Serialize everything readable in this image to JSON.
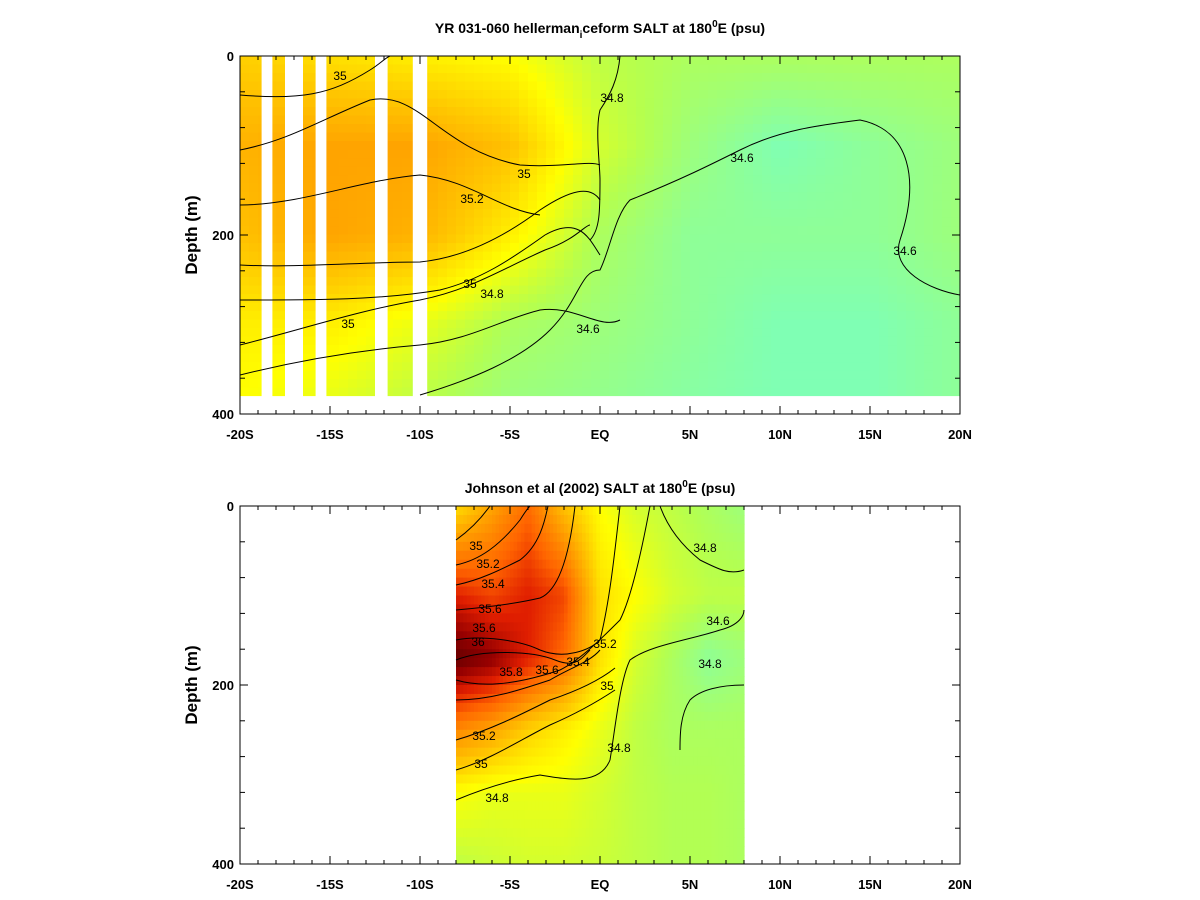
{
  "chart_data": [
    {
      "type": "heatmap",
      "title": "YR 031-060 hellerman_iceform SALT at 180°E (psu)",
      "title_parts": {
        "main": "YR 031-060 hellerman",
        "sub": "i",
        "mid": "ceform SALT at 180",
        "sup": "0",
        "end": "E (psu)"
      },
      "xlabel": "",
      "ylabel": "Depth (m)",
      "xlim": [
        -20,
        20
      ],
      "ylim": [
        400,
        0
      ],
      "x_tick_values": [
        -20,
        -15,
        -10,
        -5,
        0,
        5,
        10,
        15,
        20
      ],
      "x_tick_labels": [
        "-20S",
        "-15S",
        "-10S",
        "-5S",
        "EQ",
        "5N",
        "10N",
        "15N",
        "20N"
      ],
      "y_tick_values": [
        0,
        200,
        400
      ],
      "y_tick_labels": [
        "0",
        "200",
        "400"
      ],
      "data_extent": {
        "x": [
          -20,
          20
        ],
        "y": [
          0,
          380
        ]
      },
      "missing_columns": [
        [
          -18.8,
          -18.2
        ],
        [
          -17.5,
          -16.5
        ],
        [
          -15.8,
          -15.2
        ],
        [
          -12.5,
          -11.8
        ],
        [
          -10.4,
          -9.6
        ]
      ],
      "salinity_grid": {
        "x": [
          -20,
          -15,
          -10,
          -5,
          0,
          5,
          10,
          15,
          20
        ],
        "depth": [
          0,
          100,
          200,
          300,
          380
        ],
        "values": [
          [
            35.05,
            35.0,
            34.95,
            34.9,
            34.75,
            34.7,
            34.7,
            34.7,
            34.7
          ],
          [
            35.15,
            35.2,
            35.2,
            35.1,
            34.8,
            34.65,
            34.55,
            34.6,
            34.65
          ],
          [
            35.1,
            35.2,
            35.15,
            34.95,
            34.7,
            34.6,
            34.6,
            34.6,
            34.65
          ],
          [
            34.95,
            34.95,
            34.85,
            34.7,
            34.65,
            34.6,
            34.55,
            34.55,
            34.6
          ],
          [
            34.9,
            34.85,
            34.75,
            34.65,
            34.62,
            34.58,
            34.55,
            34.55,
            34.6
          ]
        ]
      },
      "contour_labels": [
        "35",
        "34.8",
        "35",
        "35.2",
        "34.6",
        "34.6",
        "35",
        "34.8",
        "35",
        "34.6"
      ],
      "colorscale": [
        "#7fffb4",
        "#b4ff50",
        "#ffff00",
        "#ffc800",
        "#ff9600",
        "#ff6400",
        "#e01e00",
        "#960000",
        "#500000"
      ]
    },
    {
      "type": "heatmap",
      "title": "Johnson et al (2002) SALT at 180°E (psu)",
      "title_parts": {
        "main": "Johnson et al (2002) SALT at 180",
        "sup": "0",
        "end": "E (psu)"
      },
      "xlabel": "",
      "ylabel": "Depth (m)",
      "xlim": [
        -20,
        20
      ],
      "ylim": [
        400,
        0
      ],
      "x_tick_values": [
        -20,
        -15,
        -10,
        -5,
        0,
        5,
        10,
        15,
        20
      ],
      "x_tick_labels": [
        "-20S",
        "-15S",
        "-10S",
        "-5S",
        "EQ",
        "5N",
        "10N",
        "15N",
        "20N"
      ],
      "y_tick_values": [
        0,
        200,
        400
      ],
      "y_tick_labels": [
        "0",
        "200",
        "400"
      ],
      "data_extent": {
        "x": [
          -8,
          8
        ],
        "y": [
          0,
          400
        ]
      },
      "salinity_grid": {
        "x": [
          -8,
          -6,
          -4,
          -2,
          0,
          2,
          4,
          6,
          8
        ],
        "depth": [
          0,
          100,
          170,
          250,
          320,
          400
        ],
        "values": [
          [
            35.0,
            35.2,
            35.4,
            35.1,
            34.9,
            34.8,
            34.75,
            34.7,
            34.65
          ],
          [
            35.6,
            35.5,
            35.6,
            35.5,
            35.0,
            34.9,
            34.8,
            34.75,
            34.75
          ],
          [
            35.9,
            35.8,
            35.6,
            35.4,
            35.0,
            34.8,
            34.7,
            34.6,
            34.65
          ],
          [
            35.3,
            35.2,
            35.05,
            34.95,
            34.85,
            34.75,
            34.7,
            34.7,
            34.7
          ],
          [
            34.9,
            34.85,
            34.85,
            34.85,
            34.8,
            34.75,
            34.72,
            34.72,
            34.7
          ],
          [
            34.75,
            34.78,
            34.8,
            34.8,
            34.78,
            34.75,
            34.72,
            34.72,
            34.7
          ]
        ]
      },
      "contour_labels": [
        "35",
        "35.2",
        "35.4",
        "35.6",
        "35.6",
        "36",
        "35.8",
        "35.6",
        "35.4",
        "35.2",
        "35",
        "35.2",
        "35",
        "34.8",
        "34.8",
        "34.8",
        "34.6",
        "34.8"
      ],
      "colorscale": [
        "#7fffb4",
        "#b4ff50",
        "#ffff00",
        "#ffc800",
        "#ff9600",
        "#ff6400",
        "#e01e00",
        "#960000",
        "#500000"
      ]
    }
  ]
}
